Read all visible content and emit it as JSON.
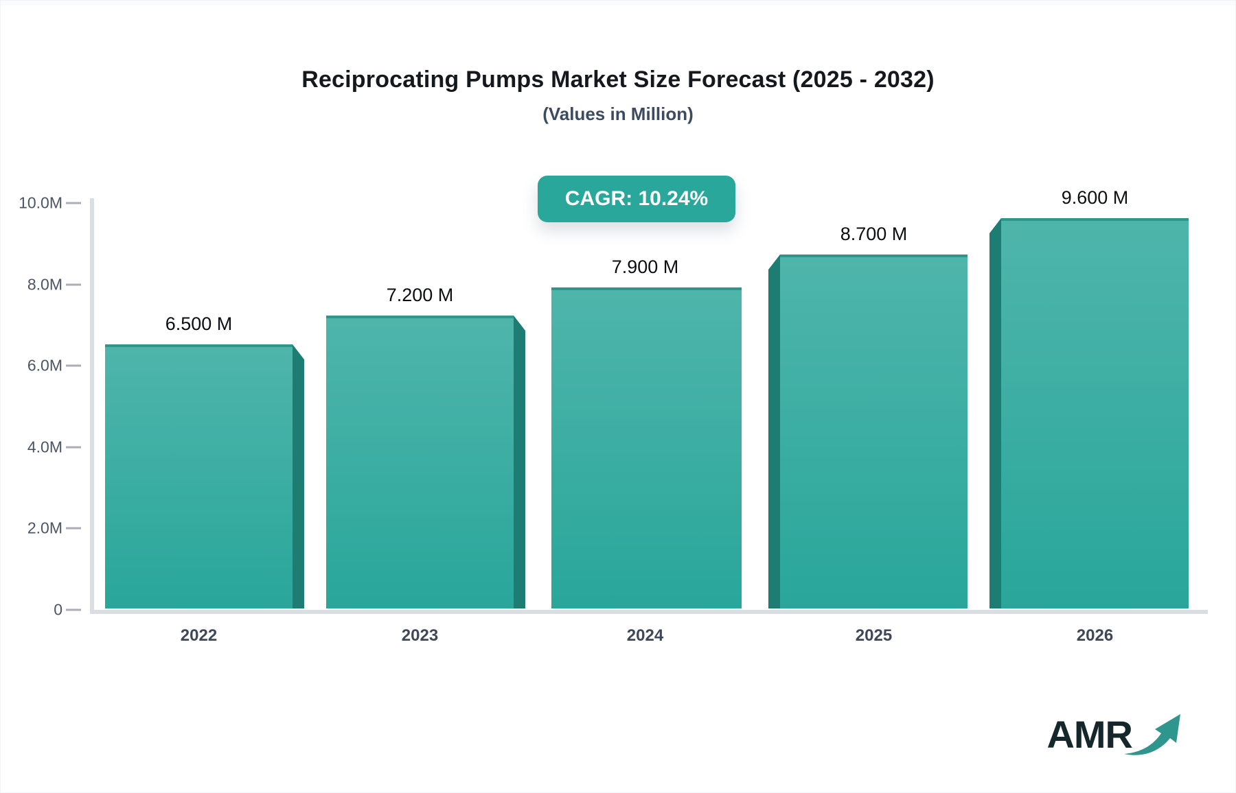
{
  "header": {
    "title": "Reciprocating Pumps Market Size Forecast (2025 - 2032)",
    "subtitle": "(Values in Million)"
  },
  "badge": {
    "label": "CAGR: 10.24%",
    "bg": "#2aa79b",
    "text_color": "#ffffff"
  },
  "chart_data": {
    "type": "bar",
    "title": "Reciprocating Pumps Market Size Forecast (2025 - 2032)",
    "subtitle": "(Values in Million)",
    "categories": [
      "2022",
      "2023",
      "2024",
      "2025",
      "2026"
    ],
    "values": [
      6.5,
      7.2,
      7.9,
      8.7,
      9.6
    ],
    "value_labels": [
      "6.500 M",
      "7.200 M",
      "7.900 M",
      "8.700 M",
      "9.600 M"
    ],
    "unit": "Million",
    "xlabel": "",
    "ylabel": "",
    "ylim": [
      0,
      10
    ],
    "yticks": [
      {
        "v": 10,
        "label": "10.0M"
      },
      {
        "v": 8,
        "label": "8.0M"
      },
      {
        "v": 6,
        "label": "6.0M"
      },
      {
        "v": 4,
        "label": "4.0M"
      },
      {
        "v": 2,
        "label": "2.0M"
      },
      {
        "v": 0,
        "label": "0"
      }
    ],
    "grid": false,
    "legend": "none",
    "bar_3d_side": [
      "right",
      "right",
      "none",
      "left",
      "left"
    ],
    "colors": {
      "bar_top": "#4fb5ab",
      "bar_bottom": "#29a69a",
      "bar_side": "#1e7d73",
      "bar_top_edge": "#2e968b",
      "axis_line": "#dadde2",
      "tick_mark": "#a9aeb8",
      "tick_label": "#4b5563",
      "x_label": "#3e4857",
      "value_label": "#0c0e11"
    }
  },
  "logo": {
    "text": "AMR",
    "text_color": "#15272a",
    "arrow_color": "#2e968c"
  }
}
